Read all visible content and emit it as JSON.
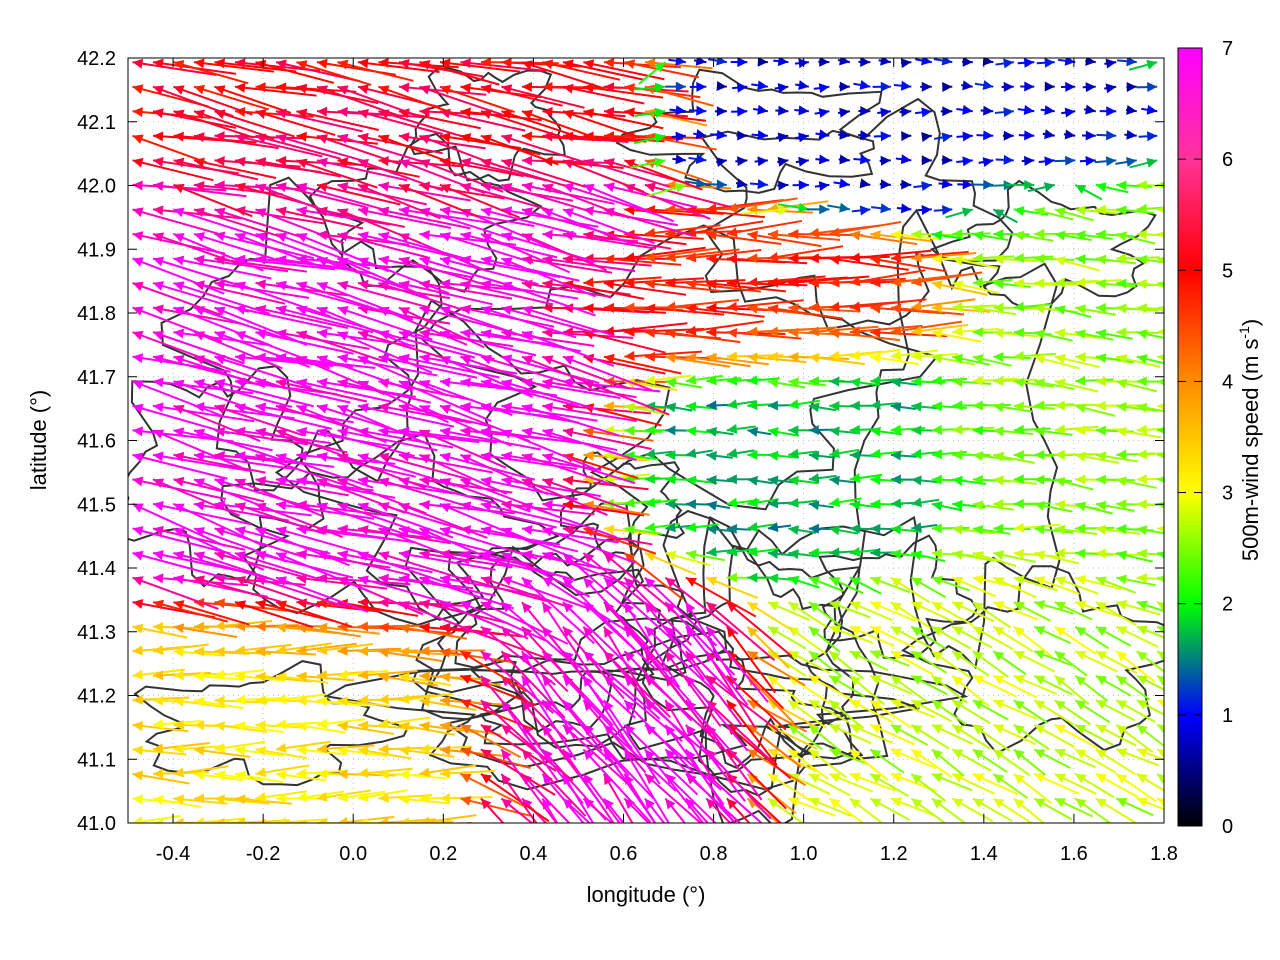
{
  "chart_data": {
    "type": "vector-field",
    "xlabel": "longitude (°)",
    "ylabel": "latitude (°)",
    "xlim": [
      -0.5,
      1.8
    ],
    "ylim": [
      41.0,
      42.2
    ],
    "xticks": [
      "-0.4",
      "-0.2",
      "0.0",
      "0.2",
      "0.4",
      "0.6",
      "0.8",
      "1.0",
      "1.2",
      "1.4",
      "1.6",
      "1.8"
    ],
    "yticks": [
      "41.0",
      "41.1",
      "41.2",
      "41.3",
      "41.4",
      "41.5",
      "41.6",
      "41.7",
      "41.8",
      "41.9",
      "42.0",
      "42.1",
      "42.2"
    ],
    "grid": "dotted",
    "colorbar": {
      "label_main": "500m-wind speed (m s",
      "label_sup": "-1",
      "label_end": ")",
      "range": [
        0,
        7
      ],
      "ticks": [
        "0",
        "1",
        "2",
        "3",
        "4",
        "5",
        "6",
        "7"
      ],
      "palette": [
        "#000000",
        "#0000ff",
        "#00ff00",
        "#ffff00",
        "#ff8c00",
        "#ff0000",
        "#ff00ff"
      ]
    },
    "contour_color": "#333333",
    "wind_regions": [
      {
        "lon": [
          -0.5,
          0.45
        ],
        "lat": [
          41.35,
          42.1
        ],
        "speed": 7.0,
        "direction_deg": 165
      },
      {
        "lon": [
          -0.5,
          0.4
        ],
        "lat": [
          42.0,
          42.2
        ],
        "speed": 5.8,
        "direction_deg": 170
      },
      {
        "lon": [
          0.3,
          0.8
        ],
        "lat": [
          41.0,
          41.35
        ],
        "speed": 7.0,
        "direction_deg": 130
      },
      {
        "lon": [
          0.45,
          1.2
        ],
        "lat": [
          41.75,
          41.9
        ],
        "speed": 5.5,
        "direction_deg": 180
      },
      {
        "lon": [
          -0.5,
          0.2
        ],
        "lat": [
          41.0,
          41.3
        ],
        "speed": 3.8,
        "direction_deg": 180
      },
      {
        "lon": [
          0.9,
          1.8
        ],
        "lat": [
          41.0,
          41.35
        ],
        "speed": 3.2,
        "direction_deg": 150
      },
      {
        "lon": [
          0.6,
          1.3
        ],
        "lat": [
          41.45,
          41.7
        ],
        "speed": 2.0,
        "direction_deg": 180
      },
      {
        "lon": [
          0.9,
          1.6
        ],
        "lat": [
          42.0,
          42.2
        ],
        "speed": 1.0,
        "direction_deg": 0
      },
      {
        "lon": [
          1.3,
          1.8
        ],
        "lat": [
          41.4,
          41.95
        ],
        "speed": 3.0,
        "direction_deg": 175
      }
    ]
  }
}
